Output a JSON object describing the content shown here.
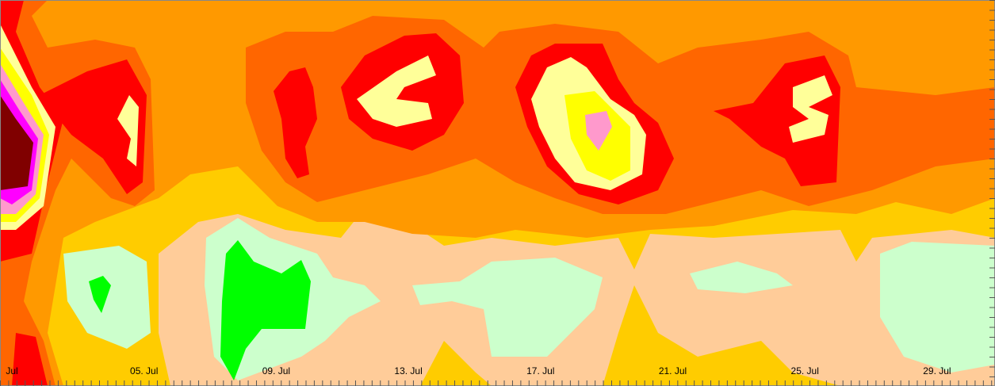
{
  "chart_data": {
    "type": "contour",
    "x_labels": [
      "Jul",
      "05. Jul",
      "09. Jul",
      "13. Jul",
      "17. Jul",
      "21. Jul",
      "25. Jul",
      "29. Jul"
    ]
  }
}
